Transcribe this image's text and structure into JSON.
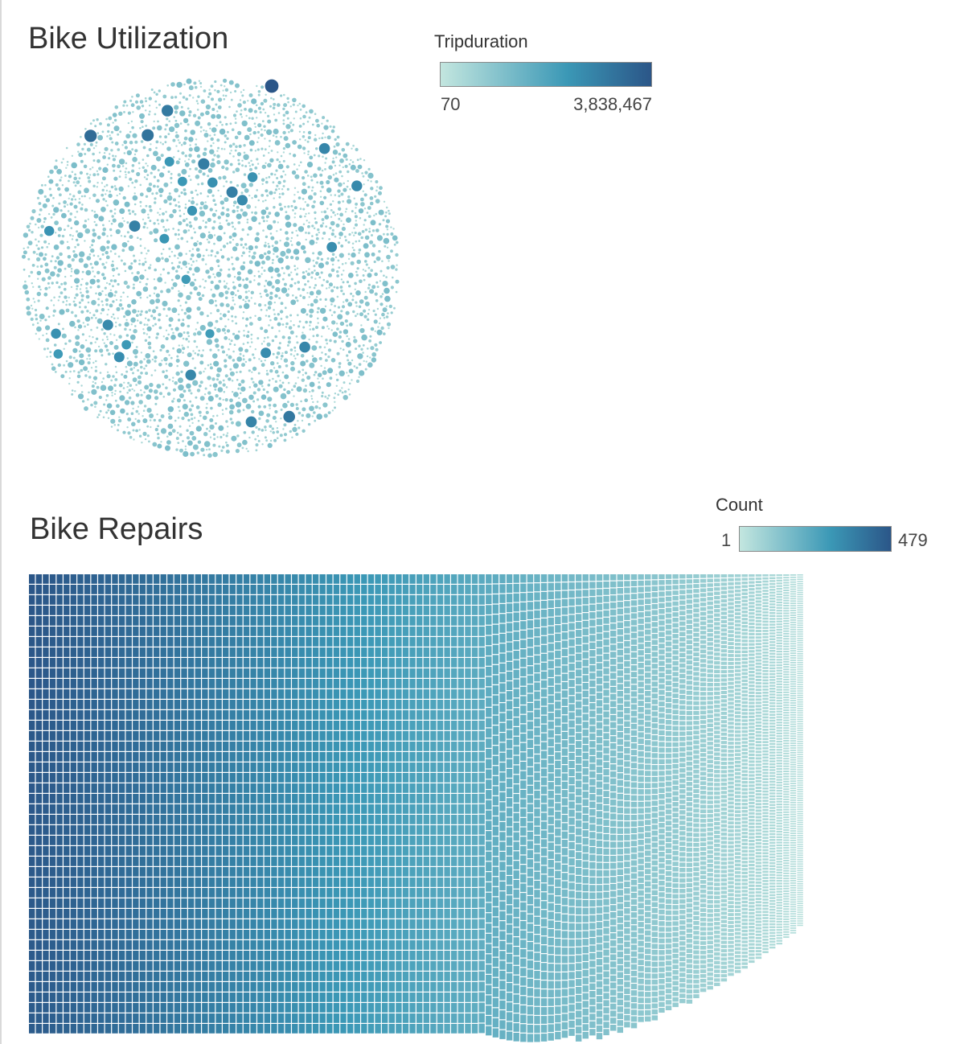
{
  "colors": {
    "ramp_low": "#c3e6df",
    "ramp_mid": "#3b98b6",
    "ramp_high": "#2b5688",
    "title": "#333333"
  },
  "chart_data": [
    {
      "type": "bubble",
      "title": "Bike Utilization",
      "legend": {
        "title": "Tripduration",
        "min_label": "70",
        "max_label": "3,838,467",
        "min": 70,
        "max": 3838467
      },
      "highlighted_bubbles": [
        {
          "size": 3838467,
          "color_value": 3838467
        },
        {
          "size": 2900000,
          "color_value": 2900000
        },
        {
          "size": 2600000,
          "color_value": 2600000
        },
        {
          "size": 2400000,
          "color_value": 2400000
        },
        {
          "size": 2300000,
          "color_value": 2300000
        },
        {
          "size": 2200000,
          "color_value": 2200000
        },
        {
          "size": 2100000,
          "color_value": 2100000
        },
        {
          "size": 2000000,
          "color_value": 2000000
        },
        {
          "size": 1900000,
          "color_value": 1900000
        },
        {
          "size": 1850000,
          "color_value": 1850000
        },
        {
          "size": 1800000,
          "color_value": 1800000
        },
        {
          "size": 1750000,
          "color_value": 1750000
        },
        {
          "size": 1700000,
          "color_value": 1700000
        },
        {
          "size": 1650000,
          "color_value": 1650000
        },
        {
          "size": 1600000,
          "color_value": 1600000
        },
        {
          "size": 1550000,
          "color_value": 1550000
        },
        {
          "size": 1500000,
          "color_value": 1500000
        },
        {
          "size": 1450000,
          "color_value": 1450000
        },
        {
          "size": 1400000,
          "color_value": 1400000
        },
        {
          "size": 1350000,
          "color_value": 1350000
        },
        {
          "size": 1300000,
          "color_value": 1300000
        },
        {
          "size": 1250000,
          "color_value": 1250000
        },
        {
          "size": 1200000,
          "color_value": 1200000
        },
        {
          "size": 1150000,
          "color_value": 1150000
        },
        {
          "size": 1100000,
          "color_value": 1100000
        },
        {
          "size": 1050000,
          "color_value": 1050000
        },
        {
          "size": 1000000,
          "color_value": 1000000
        },
        {
          "size": 950000,
          "color_value": 950000
        },
        {
          "size": 900000,
          "color_value": 900000
        },
        {
          "size": 850000,
          "color_value": 850000
        }
      ]
    },
    {
      "type": "treemap",
      "title": "Bike Repairs",
      "legend": {
        "title": "Count",
        "min_label": "1",
        "max_label": "479",
        "min": 1,
        "max": 479
      }
    }
  ]
}
